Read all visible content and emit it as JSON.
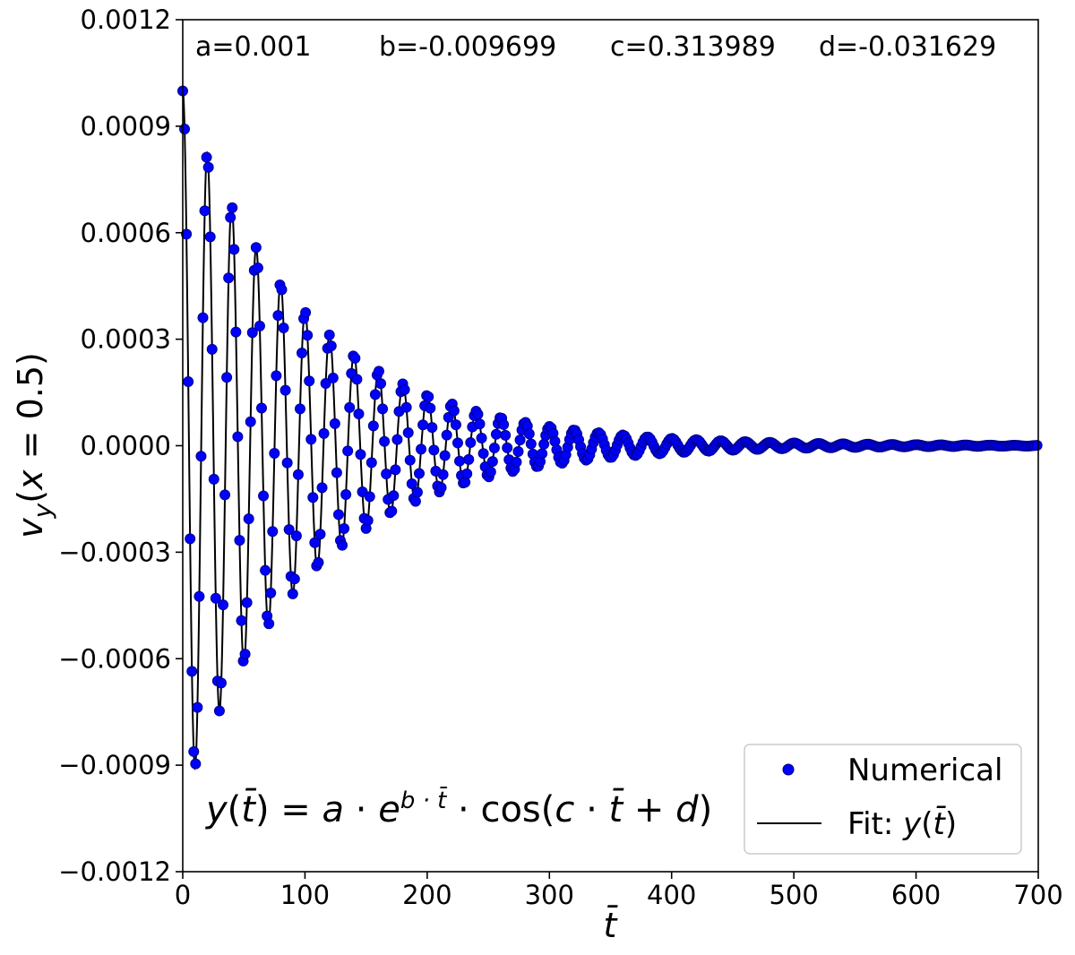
{
  "chart_data": {
    "type": "scatter",
    "title": "",
    "xlabel": "t̄",
    "ylabel": "v_y(x = 0.5)",
    "xlim": [
      0,
      700
    ],
    "ylim": [
      -0.0012,
      0.0012
    ],
    "x_ticks": [
      "0",
      "100",
      "200",
      "300",
      "400",
      "500",
      "600",
      "700"
    ],
    "y_ticks": [
      "0.0012",
      "0.0009",
      "0.0006",
      "0.0003",
      "0.0000",
      "−0.0003",
      "−0.0006",
      "−0.0009",
      "−0.0012"
    ],
    "grid": false,
    "legend_position": "bottom-right",
    "parameters": {
      "a_label": "a=0.001",
      "b_label": "b=-0.009699",
      "c_label": "c=0.313989",
      "d_label": "d=-0.031629"
    },
    "fit_params": {
      "a": 0.001,
      "b": -0.009699,
      "c": 0.313989,
      "d": -0.031629
    },
    "formula": "y(t̄) = a · e^(b · t̄) · cos(c · t̄ + d)",
    "x_sampling": {
      "start": 0,
      "end": 700,
      "step": 1.5
    },
    "series": [
      {
        "name": "Numerical",
        "kind": "markers",
        "color": "#0000ff",
        "edge_color": "#00008b",
        "model": "damped-cosine"
      },
      {
        "name": "Fit: y(t̄)",
        "kind": "line",
        "color": "#000000",
        "model": "damped-cosine"
      }
    ],
    "legend": {
      "numerical_label": "Numerical",
      "fit_label_prefix": "Fit: "
    }
  }
}
